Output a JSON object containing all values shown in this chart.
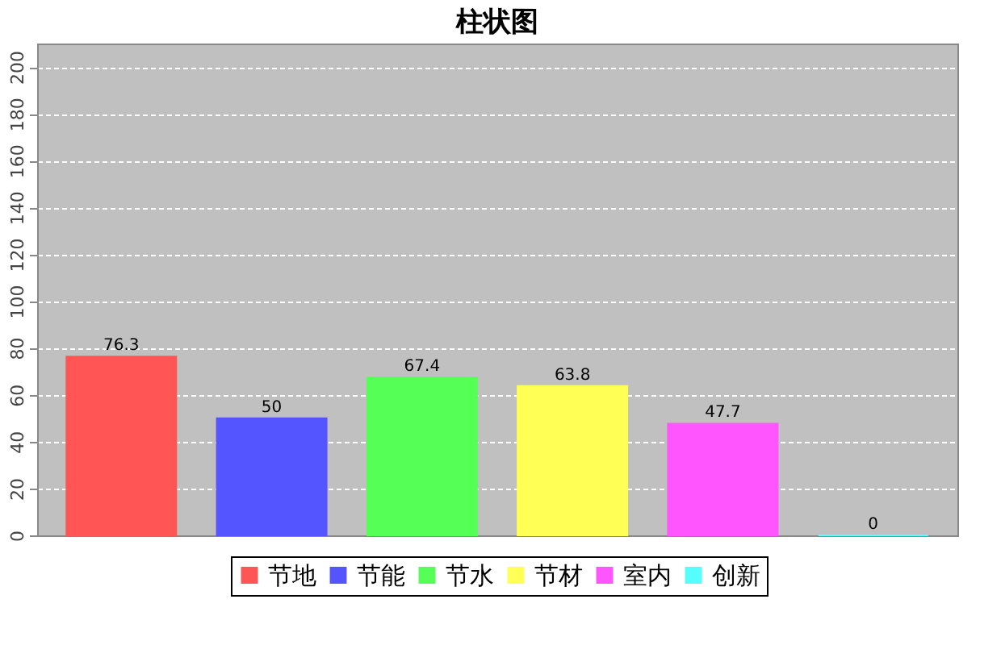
{
  "chart_data": {
    "type": "bar",
    "title": "柱状图",
    "categories": [
      null
    ],
    "series": [
      {
        "name": "节地",
        "color": "#ff5555",
        "values": [
          76.3
        ]
      },
      {
        "name": "节能",
        "color": "#5555ff",
        "values": [
          50
        ]
      },
      {
        "name": "节水",
        "color": "#55ff55",
        "values": [
          67.4
        ]
      },
      {
        "name": "节材",
        "color": "#ffff55",
        "values": [
          63.8
        ]
      },
      {
        "name": "室内",
        "color": "#ff55ff",
        "values": [
          47.7
        ]
      },
      {
        "name": "创新",
        "color": "#55ffff",
        "values": [
          0
        ]
      }
    ],
    "ylim": [
      0,
      210
    ],
    "yticks": [
      0,
      20,
      40,
      60,
      80,
      100,
      120,
      140,
      160,
      180,
      200
    ],
    "grid": "y",
    "legend": "bottom",
    "data_labels": true,
    "tick_labels": "y"
  }
}
